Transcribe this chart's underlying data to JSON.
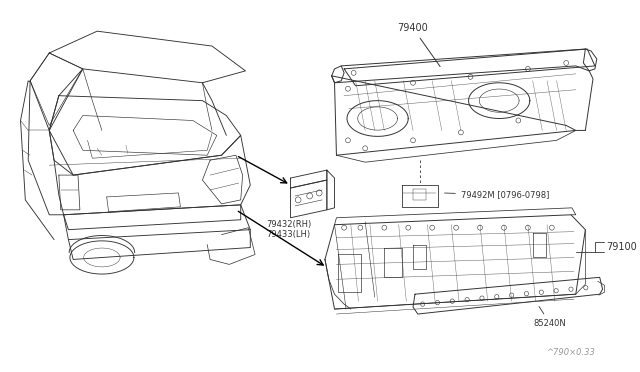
{
  "background_color": "#ffffff",
  "figure_width": 6.4,
  "figure_height": 3.72,
  "dpi": 100,
  "watermark": "^790×0.33",
  "line_color": "#333333",
  "text_color": "#333333",
  "font_size": 7.0,
  "small_font_size": 6.0,
  "label_79400": "79400",
  "label_79432": "79432(RH)\n79433(LH)",
  "label_79492M": "79492M [0796-0798]",
  "label_79100": "79100",
  "label_85240N": "85240N"
}
